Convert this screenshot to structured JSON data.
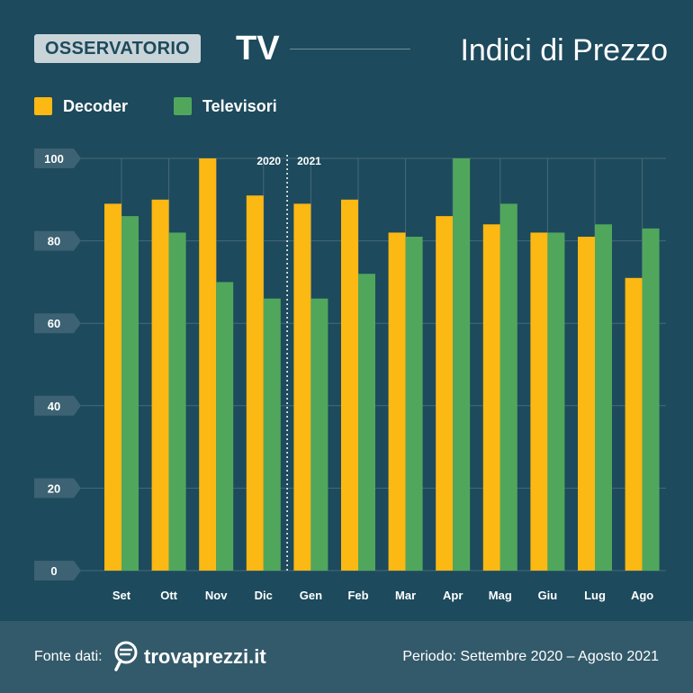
{
  "header": {
    "badge": "OSSERVATORIO",
    "badge_suffix": "TV",
    "title": "Indici di Prezzo"
  },
  "legend": [
    {
      "label": "Decoder",
      "color": "#fcb813"
    },
    {
      "label": "Televisori",
      "color": "#50a75c"
    }
  ],
  "chart_data": {
    "type": "bar",
    "categories": [
      "Set",
      "Ott",
      "Nov",
      "Dic",
      "Gen",
      "Feb",
      "Mar",
      "Apr",
      "Mag",
      "Giu",
      "Lug",
      "Ago"
    ],
    "series": [
      {
        "name": "Decoder",
        "values": [
          89,
          90,
          100,
          91,
          89,
          90,
          82,
          86,
          84,
          82,
          81,
          71
        ],
        "color": "#fcb813"
      },
      {
        "name": "Televisori",
        "values": [
          86,
          82,
          70,
          66,
          66,
          72,
          81,
          100,
          89,
          82,
          84,
          83
        ],
        "color": "#50a75c"
      }
    ],
    "ylim": [
      0,
      100
    ],
    "yticks": [
      0,
      20,
      40,
      60,
      80,
      100
    ],
    "year_divider": {
      "after_category": "Dic",
      "left_label": "2020",
      "right_label": "2021"
    },
    "title": "Indici di Prezzo",
    "xlabel": "",
    "ylabel": "",
    "grid": true,
    "legend_position": "top-left"
  },
  "footer": {
    "source_label": "Fonte dati:",
    "brand": "trovaprezzi.it",
    "period": "Periodo: Settembre 2020 – Agosto 2021"
  }
}
